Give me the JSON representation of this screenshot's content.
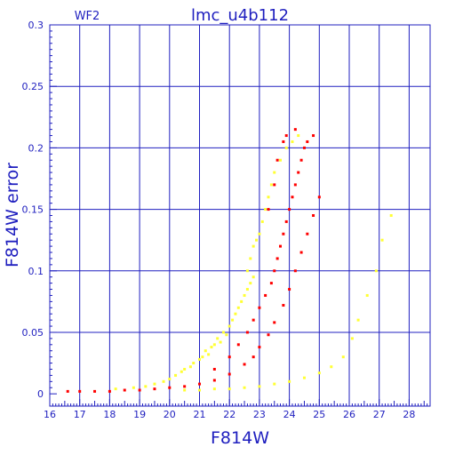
{
  "chart_data": {
    "type": "scatter",
    "title": "lmc_u4b112",
    "subtitle": "WF2",
    "xlabel": "F814W",
    "ylabel": "F814W error",
    "xlim": [
      16,
      28.7
    ],
    "ylim": [
      -0.01,
      0.3
    ],
    "grid": true,
    "x_ticks": [
      16,
      17,
      18,
      19,
      20,
      21,
      22,
      23,
      24,
      25,
      26,
      27,
      28
    ],
    "y_ticks": [
      0,
      0.05,
      0.1,
      0.15,
      0.2,
      0.25,
      0.3
    ],
    "y_tick_labels": [
      "0",
      "0.05",
      "0.1",
      "0.15",
      "0.2",
      "0.25",
      "0.3"
    ],
    "colors": {
      "axis": "#1f1fbf",
      "grid": "#2020c0",
      "series_red": "#ff0000",
      "series_yellow": "#ffff33"
    },
    "series": [
      {
        "color": "#ffff33",
        "points": [
          [
            18.2,
            0.004
          ],
          [
            18.8,
            0.005
          ],
          [
            19.2,
            0.006
          ],
          [
            19.5,
            0.008
          ],
          [
            19.8,
            0.01
          ],
          [
            20.0,
            0.012
          ],
          [
            20.2,
            0.015
          ],
          [
            20.4,
            0.018
          ],
          [
            20.5,
            0.02
          ],
          [
            20.7,
            0.022
          ],
          [
            20.8,
            0.025
          ],
          [
            21.0,
            0.028
          ],
          [
            21.1,
            0.03
          ],
          [
            21.2,
            0.035
          ],
          [
            21.3,
            0.032
          ],
          [
            21.4,
            0.038
          ],
          [
            21.5,
            0.04
          ],
          [
            21.6,
            0.045
          ],
          [
            21.7,
            0.042
          ],
          [
            21.8,
            0.05
          ],
          [
            21.9,
            0.048
          ],
          [
            22.0,
            0.055
          ],
          [
            22.1,
            0.06
          ],
          [
            22.2,
            0.065
          ],
          [
            22.3,
            0.07
          ],
          [
            22.4,
            0.075
          ],
          [
            22.5,
            0.08
          ],
          [
            22.6,
            0.085
          ],
          [
            22.7,
            0.09
          ],
          [
            22.8,
            0.095
          ],
          [
            22.6,
            0.1
          ],
          [
            22.7,
            0.11
          ],
          [
            22.8,
            0.12
          ],
          [
            22.9,
            0.125
          ],
          [
            23.0,
            0.13
          ],
          [
            23.1,
            0.14
          ],
          [
            23.2,
            0.15
          ],
          [
            23.3,
            0.16
          ],
          [
            23.4,
            0.17
          ],
          [
            23.5,
            0.18
          ],
          [
            23.7,
            0.19
          ],
          [
            23.9,
            0.2
          ],
          [
            24.1,
            0.205
          ],
          [
            24.3,
            0.21
          ],
          [
            20.5,
            0.003
          ],
          [
            21.0,
            0.003
          ],
          [
            21.5,
            0.004
          ],
          [
            22.0,
            0.004
          ],
          [
            22.5,
            0.005
          ],
          [
            23.0,
            0.006
          ],
          [
            23.5,
            0.008
          ],
          [
            24.0,
            0.01
          ],
          [
            24.5,
            0.013
          ],
          [
            25.0,
            0.017
          ],
          [
            25.4,
            0.022
          ],
          [
            25.8,
            0.03
          ],
          [
            26.1,
            0.045
          ],
          [
            26.3,
            0.06
          ],
          [
            26.6,
            0.08
          ],
          [
            26.9,
            0.1
          ],
          [
            27.1,
            0.125
          ],
          [
            27.4,
            0.145
          ]
        ]
      },
      {
        "color": "#ff0000",
        "points": [
          [
            16.6,
            0.002
          ],
          [
            17.0,
            0.002
          ],
          [
            17.5,
            0.002
          ],
          [
            18.0,
            0.002
          ],
          [
            18.5,
            0.003
          ],
          [
            19.0,
            0.003
          ],
          [
            19.5,
            0.004
          ],
          [
            20.0,
            0.005
          ],
          [
            20.5,
            0.006
          ],
          [
            21.0,
            0.008
          ],
          [
            21.5,
            0.011
          ],
          [
            22.0,
            0.016
          ],
          [
            22.5,
            0.024
          ],
          [
            22.8,
            0.03
          ],
          [
            23.0,
            0.038
          ],
          [
            23.3,
            0.048
          ],
          [
            23.5,
            0.058
          ],
          [
            23.8,
            0.072
          ],
          [
            24.0,
            0.085
          ],
          [
            24.2,
            0.1
          ],
          [
            24.4,
            0.115
          ],
          [
            24.6,
            0.13
          ],
          [
            24.8,
            0.145
          ],
          [
            25.0,
            0.16
          ],
          [
            21.5,
            0.02
          ],
          [
            22.0,
            0.03
          ],
          [
            22.3,
            0.04
          ],
          [
            22.6,
            0.05
          ],
          [
            22.8,
            0.06
          ],
          [
            23.0,
            0.07
          ],
          [
            23.2,
            0.08
          ],
          [
            23.4,
            0.09
          ],
          [
            23.5,
            0.1
          ],
          [
            23.6,
            0.11
          ],
          [
            23.7,
            0.12
          ],
          [
            23.8,
            0.13
          ],
          [
            23.9,
            0.14
          ],
          [
            24.0,
            0.15
          ],
          [
            24.1,
            0.16
          ],
          [
            24.2,
            0.17
          ],
          [
            24.3,
            0.18
          ],
          [
            24.4,
            0.19
          ],
          [
            24.5,
            0.2
          ],
          [
            24.6,
            0.205
          ],
          [
            24.8,
            0.21
          ],
          [
            23.3,
            0.15
          ],
          [
            23.5,
            0.17
          ],
          [
            23.6,
            0.19
          ],
          [
            23.8,
            0.205
          ],
          [
            23.9,
            0.21
          ],
          [
            24.2,
            0.215
          ]
        ]
      }
    ]
  }
}
